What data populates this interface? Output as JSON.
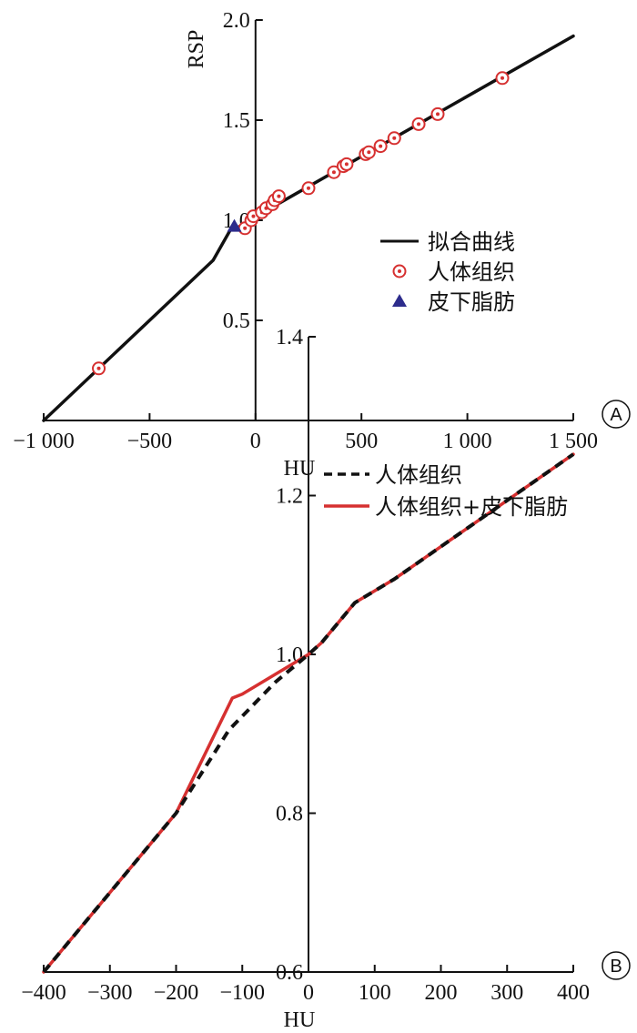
{
  "chart_data": [
    {
      "panel": "A",
      "type": "line+scatter",
      "xlabel": "HU",
      "ylabel": "RSP",
      "xlim": [
        -1000,
        1500
      ],
      "ylim": [
        0,
        2.0
      ],
      "x_ticks": [
        -1000,
        -500,
        0,
        500,
        1000,
        1500
      ],
      "x_tick_labels": [
        "−1 000",
        "−500",
        "0",
        "500",
        "1 000",
        "1 500"
      ],
      "y_ticks": [
        0.5,
        1.0,
        1.5,
        2.0
      ],
      "y_tick_labels": [
        "0.5",
        "1.0",
        "1.5",
        "2.0"
      ],
      "legend_position": "right",
      "series": [
        {
          "name": "拟合曲线",
          "kind": "line",
          "color": "#111111",
          "points": [
            [
              -1000,
              0.0
            ],
            [
              -200,
              0.8
            ],
            [
              -120,
              0.95
            ],
            [
              0,
              1.0
            ],
            [
              40,
              1.03
            ],
            [
              70,
              1.06
            ],
            [
              1500,
              1.92
            ]
          ]
        },
        {
          "name": "人体组织",
          "kind": "scatter",
          "color": "#d63030",
          "points": [
            [
              -740,
              0.26
            ],
            [
              -50,
              0.96
            ],
            [
              -20,
              1.0
            ],
            [
              -10,
              1.02
            ],
            [
              30,
              1.04
            ],
            [
              50,
              1.06
            ],
            [
              80,
              1.08
            ],
            [
              90,
              1.1
            ],
            [
              110,
              1.12
            ],
            [
              250,
              1.16
            ],
            [
              370,
              1.24
            ],
            [
              415,
              1.27
            ],
            [
              430,
              1.28
            ],
            [
              520,
              1.33
            ],
            [
              535,
              1.34
            ],
            [
              590,
              1.37
            ],
            [
              655,
              1.41
            ],
            [
              770,
              1.48
            ],
            [
              860,
              1.53
            ],
            [
              1165,
              1.71
            ]
          ]
        },
        {
          "name": "皮下脂肪",
          "kind": "scatter",
          "color": "#2d2c8c",
          "points": [
            [
              -100,
              0.97
            ]
          ]
        }
      ]
    },
    {
      "panel": "B",
      "type": "line",
      "xlabel": "HU",
      "ylabel": "",
      "xlim": [
        -400,
        400
      ],
      "ylim": [
        0.6,
        1.4
      ],
      "x_ticks": [
        -400,
        -300,
        -200,
        -100,
        0,
        100,
        200,
        300,
        400
      ],
      "x_tick_labels": [
        "−400",
        "−300",
        "−200",
        "−100",
        "0",
        "100",
        "200",
        "300",
        "400"
      ],
      "y_ticks": [
        0.6,
        0.8,
        1.0,
        1.2,
        1.4
      ],
      "y_tick_labels": [
        "0.6",
        "0.8",
        "1.0",
        "1.2",
        "1.4"
      ],
      "legend_position": "right",
      "series": [
        {
          "name": "人体组织",
          "kind": "dashed-line",
          "color": "#111111",
          "points": [
            [
              -400,
              0.6
            ],
            [
              -200,
              0.8
            ],
            [
              -120,
              0.905
            ],
            [
              -50,
              0.965
            ],
            [
              0,
              1.0
            ],
            [
              20,
              1.015
            ],
            [
              70,
              1.065
            ],
            [
              130,
              1.095
            ],
            [
              400,
              1.252
            ]
          ]
        },
        {
          "name": "人体组织+皮下脂肪",
          "kind": "line",
          "color": "#d63030",
          "points": [
            [
              -400,
              0.6
            ],
            [
              -200,
              0.8
            ],
            [
              -115,
              0.945
            ],
            [
              -100,
              0.95
            ],
            [
              0,
              1.0
            ],
            [
              20,
              1.015
            ],
            [
              70,
              1.065
            ],
            [
              130,
              1.095
            ],
            [
              400,
              1.252
            ]
          ]
        }
      ]
    }
  ]
}
